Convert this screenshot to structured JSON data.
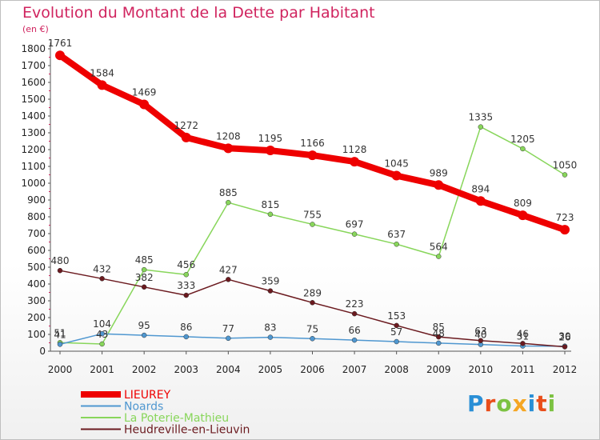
{
  "chart_data": {
    "type": "line",
    "title": "Evolution du Montant de la Dette par Habitant",
    "unit_label": "(en €)",
    "x": [
      "2000",
      "2001",
      "2002",
      "2003",
      "2004",
      "2005",
      "2006",
      "2007",
      "2008",
      "2009",
      "2010",
      "2011",
      "2012"
    ],
    "ylim": [
      0,
      1800
    ],
    "yticks": [
      0,
      100,
      200,
      300,
      400,
      500,
      600,
      700,
      800,
      900,
      1000,
      1100,
      1200,
      1300,
      1400,
      1500,
      1600,
      1700,
      1800
    ],
    "grid": false,
    "legend_position": "bottom-left",
    "series": [
      {
        "name": "LIEUREY",
        "color": "#ee0000",
        "values": [
          1761,
          1584,
          1469,
          1272,
          1208,
          1195,
          1166,
          1128,
          1045,
          989,
          894,
          809,
          723
        ]
      },
      {
        "name": "Noards",
        "color": "#4f97d0",
        "values": [
          41,
          104,
          95,
          86,
          77,
          83,
          75,
          66,
          57,
          48,
          40,
          31,
          30
        ]
      },
      {
        "name": "La Poterie-Mathieu",
        "color": "#88d65b",
        "values": [
          51,
          43,
          485,
          456,
          885,
          815,
          755,
          697,
          637,
          564,
          1335,
          1205,
          1050
        ]
      },
      {
        "name": "Heudreville-en-Lieuvin",
        "color": "#6b1a1f",
        "values": [
          480,
          432,
          382,
          333,
          427,
          359,
          289,
          223,
          153,
          85,
          63,
          46,
          26
        ]
      }
    ]
  },
  "logo": {
    "letters": [
      "P",
      "r",
      "o",
      "x",
      "i",
      "t",
      "i"
    ]
  }
}
